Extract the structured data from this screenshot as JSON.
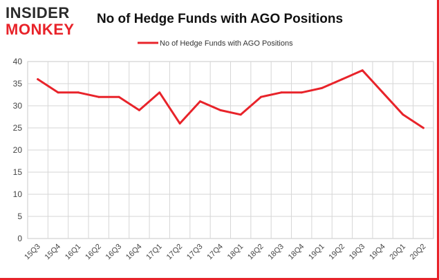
{
  "logo": {
    "line1": "INSIDER",
    "line2": "MONKEY",
    "color_dark": "#2b2b2b",
    "color_red": "#e8232a"
  },
  "chart_data": {
    "type": "line",
    "title": "No of Hedge Funds with AGO Positions",
    "xlabel": "",
    "ylabel": "",
    "categories": [
      "15Q3",
      "15Q4",
      "16Q1",
      "16Q2",
      "16Q3",
      "16Q4",
      "17Q1",
      "17Q2",
      "17Q3",
      "17Q4",
      "18Q1",
      "18Q2",
      "18Q3",
      "18Q4",
      "19Q1",
      "19Q2",
      "19Q3",
      "19Q4",
      "20Q1",
      "20Q2"
    ],
    "series": [
      {
        "name": "No of Hedge Funds with AGO Positions",
        "color": "#e8232a",
        "values": [
          36,
          33,
          33,
          32,
          32,
          29,
          33,
          26,
          31,
          29,
          28,
          32,
          33,
          33,
          34,
          36,
          38,
          33,
          28,
          25
        ]
      }
    ],
    "ylim": [
      0,
      40
    ],
    "yticks": [
      0,
      5,
      10,
      15,
      20,
      25,
      30,
      35,
      40
    ],
    "grid": true,
    "legend": "top-center"
  }
}
